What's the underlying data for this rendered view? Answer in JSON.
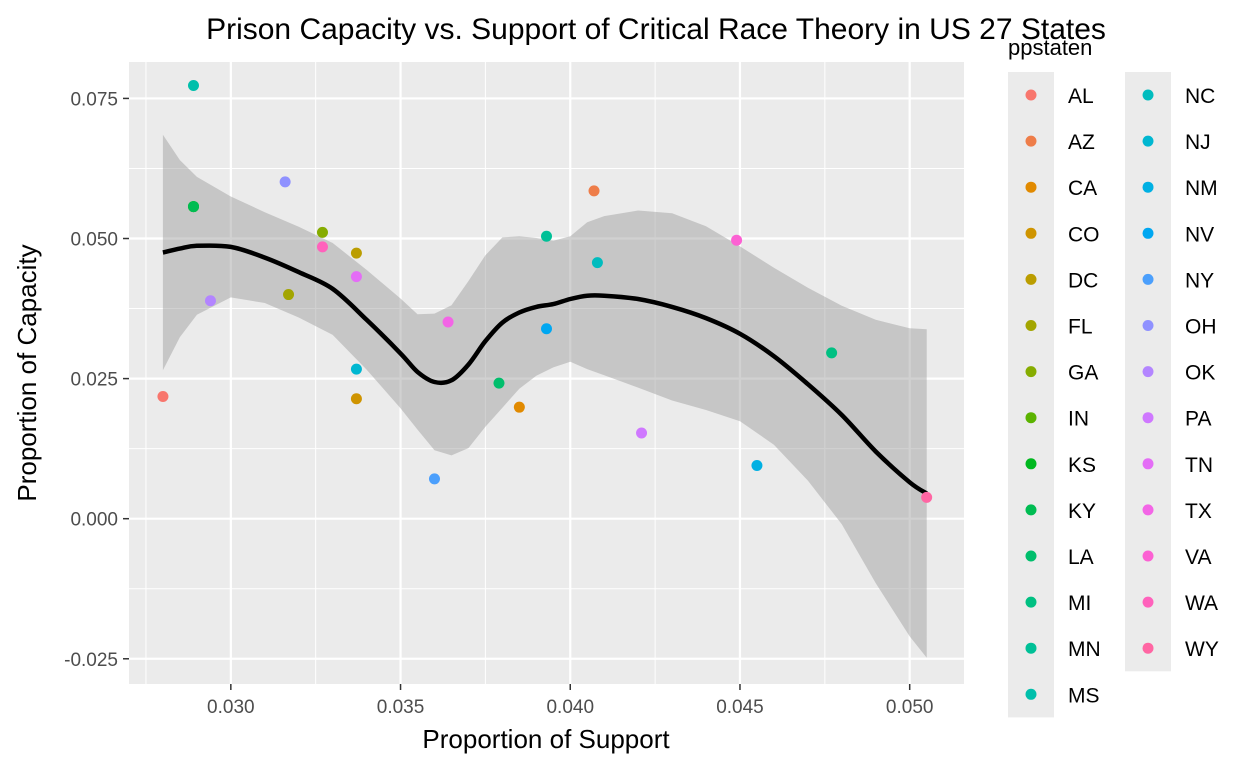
{
  "chart_data": {
    "type": "scatter",
    "title": "Prison Capacity vs. Support of Critical Race Theory in US 27 States",
    "xlabel": "Proportion of Support",
    "ylabel": "Proportion of Capacity",
    "xlim": [
      0.027,
      0.0516
    ],
    "ylim": [
      -0.0295,
      0.0815
    ],
    "x_ticks": [
      {
        "value": 0.03,
        "label": "0.030"
      },
      {
        "value": 0.035,
        "label": "0.035"
      },
      {
        "value": 0.04,
        "label": "0.040"
      },
      {
        "value": 0.045,
        "label": "0.045"
      },
      {
        "value": 0.05,
        "label": "0.050"
      }
    ],
    "y_ticks": [
      {
        "value": 0.075,
        "label": "0.075"
      },
      {
        "value": 0.05,
        "label": "0.050"
      },
      {
        "value": 0.025,
        "label": "0.025"
      },
      {
        "value": 0.0,
        "label": "0.000"
      },
      {
        "value": -0.025,
        "label": "-0.025"
      }
    ],
    "grid": true,
    "legend": {
      "title": "ppstaten",
      "placement": "right",
      "columns": 2
    },
    "points": [
      {
        "state": "AL",
        "x": 0.028,
        "y": 0.0218,
        "color": "#F8766D"
      },
      {
        "state": "AZ",
        "x": 0.0407,
        "y": 0.0585,
        "color": "#EE7D49"
      },
      {
        "state": "CA",
        "x": 0.0385,
        "y": 0.0199,
        "color": "#E18A00"
      },
      {
        "state": "CO",
        "x": 0.0337,
        "y": 0.0214,
        "color": "#CF9400"
      },
      {
        "state": "DC",
        "x": 0.0337,
        "y": 0.0474,
        "color": "#BB9D00"
      },
      {
        "state": "FL",
        "x": 0.0317,
        "y": 0.04,
        "color": "#A3A500"
      },
      {
        "state": "GA",
        "x": 0.0327,
        "y": 0.0511,
        "color": "#86AC00"
      },
      {
        "state": "IN",
        "x": 0.0289,
        "y": 0.0557,
        "color": "#5BB300"
      },
      {
        "state": "KS",
        "x": 0.0289,
        "y": 0.0557,
        "color": "#00B81F"
      },
      {
        "state": "KY",
        "x": 0.0289,
        "y": 0.0557,
        "color": "#00BC52"
      },
      {
        "state": "LA",
        "x": 0.0379,
        "y": 0.0242,
        "color": "#00BE6C"
      },
      {
        "state": "MI",
        "x": 0.0477,
        "y": 0.0296,
        "color": "#00C082"
      },
      {
        "state": "MN",
        "x": 0.0393,
        "y": 0.0504,
        "color": "#00C097"
      },
      {
        "state": "MS",
        "x": 0.0289,
        "y": 0.0773,
        "color": "#00BFAB"
      },
      {
        "state": "NC",
        "x": 0.0408,
        "y": 0.0457,
        "color": "#00BCBE"
      },
      {
        "state": "NJ",
        "x": 0.0337,
        "y": 0.0267,
        "color": "#00B7D1"
      },
      {
        "state": "NM",
        "x": 0.0455,
        "y": 0.0095,
        "color": "#00B0E3"
      },
      {
        "state": "NV",
        "x": 0.0393,
        "y": 0.0339,
        "color": "#00A7F1"
      },
      {
        "state": "NY",
        "x": 0.036,
        "y": 0.0071,
        "color": "#4B9FFC"
      },
      {
        "state": "OH",
        "x": 0.0316,
        "y": 0.0601,
        "color": "#8F91FF"
      },
      {
        "state": "OK",
        "x": 0.0294,
        "y": 0.0389,
        "color": "#B385FF"
      },
      {
        "state": "PA",
        "x": 0.0421,
        "y": 0.0153,
        "color": "#CF78FF"
      },
      {
        "state": "TN",
        "x": 0.0337,
        "y": 0.0432,
        "color": "#E46DF6"
      },
      {
        "state": "TX",
        "x": 0.0364,
        "y": 0.0351,
        "color": "#F365E6"
      },
      {
        "state": "VA",
        "x": 0.0449,
        "y": 0.0497,
        "color": "#FC61D3"
      },
      {
        "state": "WA",
        "x": 0.0327,
        "y": 0.0485,
        "color": "#FF62BC"
      },
      {
        "state": "WY",
        "x": 0.0505,
        "y": 0.0038,
        "color": "#FF66A3"
      }
    ],
    "smooth": {
      "color": "#000000",
      "band_color": "#999999",
      "x": [
        0.028,
        0.0285,
        0.029,
        0.03,
        0.031,
        0.032,
        0.033,
        0.034,
        0.035,
        0.0355,
        0.036,
        0.0365,
        0.037,
        0.0375,
        0.038,
        0.0385,
        0.039,
        0.0395,
        0.04,
        0.0405,
        0.041,
        0.042,
        0.043,
        0.044,
        0.045,
        0.046,
        0.047,
        0.048,
        0.049,
        0.05,
        0.0505
      ],
      "y": [
        0.0475,
        0.0482,
        0.0487,
        0.0485,
        0.0466,
        0.044,
        0.041,
        0.0355,
        0.0295,
        0.0262,
        0.0244,
        0.0247,
        0.0275,
        0.0317,
        0.035,
        0.0368,
        0.0378,
        0.0383,
        0.0392,
        0.0398,
        0.0398,
        0.0392,
        0.0378,
        0.0358,
        0.033,
        0.029,
        0.024,
        0.0185,
        0.012,
        0.0065,
        0.0045
      ],
      "upper": [
        0.0685,
        0.064,
        0.061,
        0.0575,
        0.0547,
        0.0521,
        0.0492,
        0.0444,
        0.0393,
        0.0365,
        0.0366,
        0.0381,
        0.0424,
        0.047,
        0.0502,
        0.0504,
        0.0501,
        0.0496,
        0.0504,
        0.0529,
        0.054,
        0.055,
        0.0545,
        0.0522,
        0.0486,
        0.0448,
        0.0412,
        0.038,
        0.0355,
        0.034,
        0.0338
      ],
      "lower": [
        0.0265,
        0.0324,
        0.0364,
        0.0395,
        0.0385,
        0.0359,
        0.0328,
        0.0266,
        0.0197,
        0.0159,
        0.0122,
        0.0113,
        0.0126,
        0.0164,
        0.0198,
        0.0232,
        0.0255,
        0.027,
        0.028,
        0.0267,
        0.0256,
        0.0234,
        0.0211,
        0.0194,
        0.0174,
        0.0132,
        0.0068,
        -0.001,
        -0.0115,
        -0.021,
        -0.0248
      ]
    },
    "colors": {
      "panel_background": "#EBEBEB",
      "grid_line": "#FFFFFF",
      "axis_text": "#4D4D4D",
      "title_text": "#000000"
    }
  }
}
